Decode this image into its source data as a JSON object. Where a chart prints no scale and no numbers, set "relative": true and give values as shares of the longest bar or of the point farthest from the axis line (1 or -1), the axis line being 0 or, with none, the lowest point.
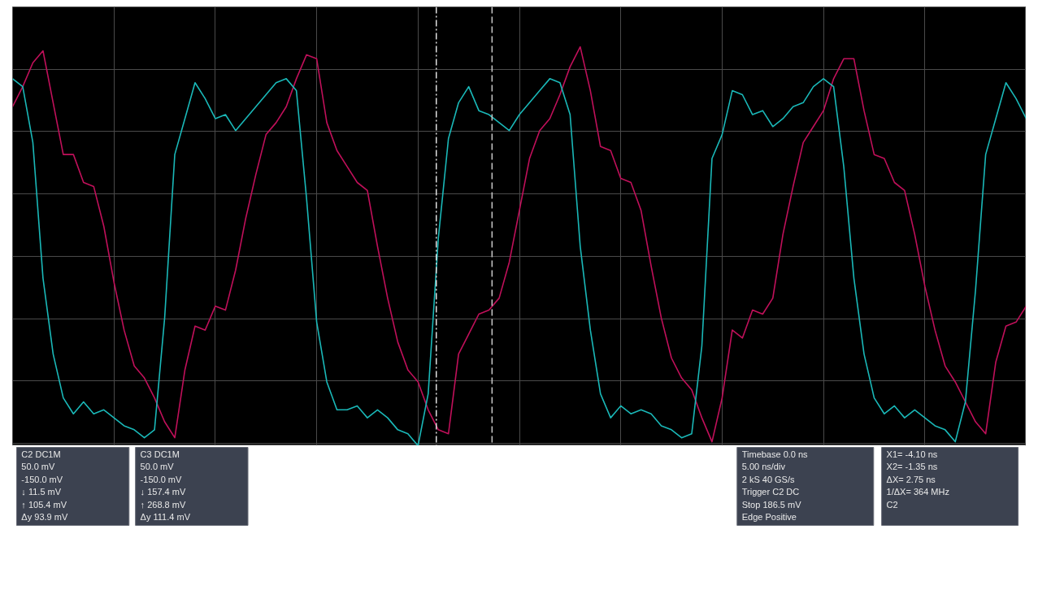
{
  "chart_data": {
    "type": "line",
    "relative": true,
    "categories": [
      null,
      null,
      null,
      null,
      null,
      null,
      null,
      null,
      null,
      null,
      null,
      null,
      null,
      null,
      null,
      null,
      null,
      null,
      null,
      null,
      null,
      null,
      null,
      null,
      null,
      null,
      null,
      null,
      null,
      null,
      null,
      null,
      null,
      null,
      null,
      null,
      null,
      null,
      null,
      null,
      null,
      null,
      null,
      null,
      null,
      null,
      null,
      null,
      null,
      null,
      null,
      null,
      null,
      null,
      null,
      null,
      null,
      null,
      null,
      null,
      null,
      null,
      null,
      null,
      null,
      null,
      null,
      null,
      null,
      null,
      null,
      null,
      null,
      null,
      null,
      null,
      null,
      null,
      null,
      null,
      null,
      null,
      null,
      null,
      null,
      null,
      null,
      null,
      null,
      null,
      null,
      null,
      null,
      null,
      null,
      null,
      null,
      null,
      null,
      null,
      null
    ],
    "grid": true,
    "series": [
      {
        "color": "#c0105a",
        "values": [
          0.85,
          0.9,
          0.96,
          0.99,
          0.86,
          0.73,
          0.73,
          0.66,
          0.65,
          0.55,
          0.41,
          0.29,
          0.2,
          0.17,
          0.12,
          0.06,
          0.02,
          0.19,
          0.3,
          0.29,
          0.35,
          0.34,
          0.44,
          0.57,
          0.68,
          0.78,
          0.81,
          0.85,
          0.92,
          0.98,
          0.97,
          0.81,
          0.74,
          0.7,
          0.66,
          0.64,
          0.5,
          0.37,
          0.26,
          0.19,
          0.16,
          0.09,
          0.04,
          0.03,
          0.23,
          0.28,
          0.33,
          0.34,
          0.37,
          0.46,
          0.59,
          0.72,
          0.79,
          0.82,
          0.88,
          0.95,
          1.0,
          0.89,
          0.75,
          0.74,
          0.67,
          0.66,
          0.59,
          0.45,
          0.32,
          0.22,
          0.17,
          0.14,
          0.07,
          0.01,
          0.12,
          0.29,
          0.27,
          0.34,
          0.33,
          0.37,
          0.53,
          0.65,
          0.76,
          0.8,
          0.84,
          0.92,
          0.97,
          0.97,
          0.84,
          0.73,
          0.72,
          0.66,
          0.64,
          0.53,
          0.4,
          0.29,
          0.2,
          0.16,
          0.11,
          0.06,
          0.03,
          0.21,
          0.3,
          0.31,
          0.35
        ]
      },
      {
        "color": "#1ab8b8",
        "values": [
          0.92,
          0.9,
          0.76,
          0.42,
          0.23,
          0.12,
          0.08,
          0.11,
          0.08,
          0.09,
          0.07,
          0.05,
          0.04,
          0.02,
          0.04,
          0.32,
          0.73,
          0.82,
          0.91,
          0.87,
          0.82,
          0.83,
          0.79,
          0.82,
          0.85,
          0.88,
          0.91,
          0.92,
          0.89,
          0.62,
          0.31,
          0.16,
          0.09,
          0.09,
          0.1,
          0.07,
          0.09,
          0.07,
          0.04,
          0.03,
          0.0,
          0.13,
          0.52,
          0.77,
          0.86,
          0.9,
          0.84,
          0.83,
          0.81,
          0.79,
          0.83,
          0.86,
          0.89,
          0.92,
          0.91,
          0.83,
          0.5,
          0.29,
          0.13,
          0.07,
          0.1,
          0.08,
          0.09,
          0.08,
          0.05,
          0.04,
          0.02,
          0.03,
          0.25,
          0.72,
          0.78,
          0.89,
          0.88,
          0.83,
          0.84,
          0.8,
          0.82,
          0.85,
          0.86,
          0.9,
          0.92,
          0.9,
          0.7,
          0.42,
          0.23,
          0.12,
          0.08,
          0.1,
          0.07,
          0.09,
          0.07,
          0.05,
          0.04,
          0.01,
          0.11,
          0.39,
          0.73,
          0.82,
          0.91,
          0.87,
          0.82
        ]
      }
    ],
    "annotations": [
      "C2 DC1M",
      "50.0 mV",
      "-150.0 mV",
      "↓ 11.5 mV",
      "↑ 105.4 mV",
      "Δy 93.9 mV",
      "C3 DC1M",
      "50.0 mV",
      "-150.0 mV",
      "↓ 157.4 mV",
      "↑ 268.8 mV",
      "Δy 111.4 mV",
      "Timebase 0.0 ns",
      "5.00 ns/div",
      "2 kS 40 GS/s",
      "Trigger C2 DC",
      "Stop 186.5 mV",
      "Edge Positive",
      "X1= -4.10 ns",
      "X2= -1.35 ns",
      "ΔX= 2.75 ns",
      "1/ΔX= 364 MHz",
      "C2"
    ]
  }
}
